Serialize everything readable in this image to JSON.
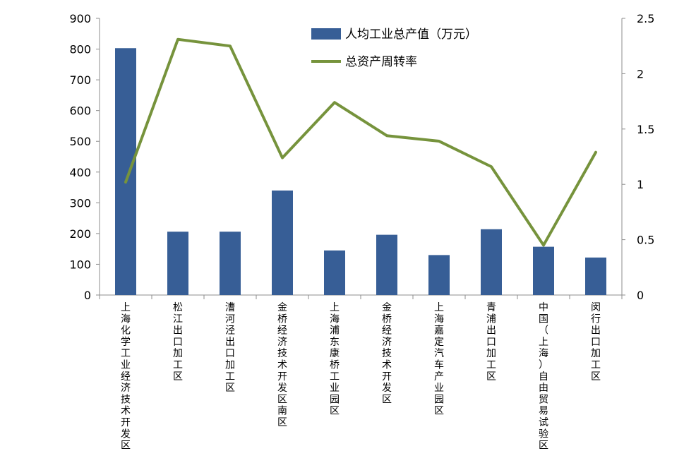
{
  "chart_data": {
    "type": "bar",
    "categories": [
      "上海化学工业经济技术开发区",
      "松江出口加工区",
      "漕河泾出口加工区",
      "金桥经济技术开发区南区",
      "上海浦东康桥工业园区",
      "金桥经济技术开发区",
      "上海嘉定汽车产业园区",
      "青浦出口加工区",
      "中国（上海）自由贸易试验区",
      "闵行出口加工区"
    ],
    "series": [
      {
        "name": "人均工业总产值（万元）",
        "type": "bar",
        "axis": "left",
        "color": "#375E96",
        "values": [
          803,
          206,
          206,
          340,
          145,
          196,
          130,
          214,
          157,
          122
        ]
      },
      {
        "name": "总资产周转率",
        "type": "line",
        "axis": "right",
        "color": "#76933C",
        "values": [
          1.02,
          2.31,
          2.25,
          1.24,
          1.74,
          1.44,
          1.39,
          1.16,
          0.45,
          1.29
        ]
      }
    ],
    "y_left": {
      "ylim": [
        0,
        900
      ],
      "ticks": [
        "0",
        "100",
        "200",
        "300",
        "400",
        "500",
        "600",
        "700",
        "800",
        "900"
      ]
    },
    "y_right": {
      "ylim": [
        0,
        2.5
      ],
      "ticks": [
        "0",
        "0.5",
        "1",
        "1.5",
        "2",
        "2.5"
      ]
    },
    "title": "",
    "xlabel": "",
    "ylabel": "",
    "legend_position": "top-center",
    "grid": false
  }
}
